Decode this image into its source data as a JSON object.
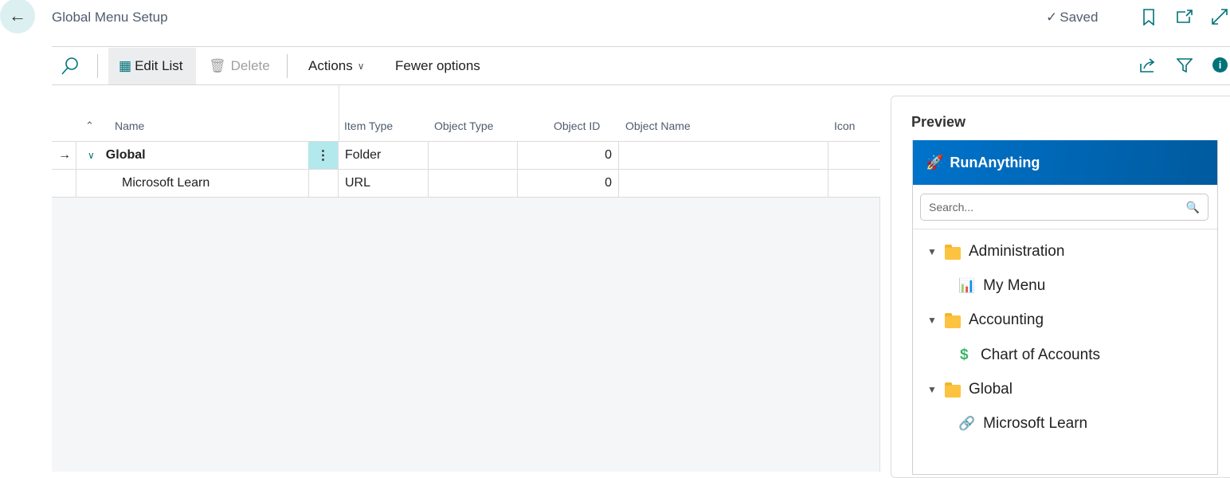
{
  "header": {
    "title": "Global Menu Setup",
    "status": "Saved"
  },
  "toolbar": {
    "edit_list": "Edit List",
    "delete": "Delete",
    "actions": "Actions",
    "fewer_options": "Fewer options"
  },
  "table": {
    "columns": [
      "Name",
      "Item Type",
      "Object Type",
      "Object ID",
      "Object Name",
      "Icon"
    ],
    "rows": [
      {
        "name": "Global",
        "item_type": "Folder",
        "object_type": "",
        "object_id": "0",
        "object_name": "",
        "icon": ""
      },
      {
        "name": "Microsoft Learn",
        "item_type": "URL",
        "object_type": "",
        "object_id": "0",
        "object_name": "",
        "icon": ""
      }
    ]
  },
  "preview": {
    "label": "Preview",
    "app_title": "RunAnything",
    "search_placeholder": "Search...",
    "tree": [
      {
        "label": "Administration",
        "children": [
          {
            "label": "My Menu",
            "icon": "bar-chart-icon"
          }
        ]
      },
      {
        "label": "Accounting",
        "children": [
          {
            "label": "Chart of Accounts",
            "icon": "dollar-icon"
          }
        ]
      },
      {
        "label": "Global",
        "children": [
          {
            "label": "Microsoft Learn",
            "icon": "link-icon"
          }
        ]
      }
    ]
  },
  "colors": {
    "accent": "#00727a",
    "preview_header": "#0068b8",
    "selected_cell": "#b3e8ec"
  }
}
